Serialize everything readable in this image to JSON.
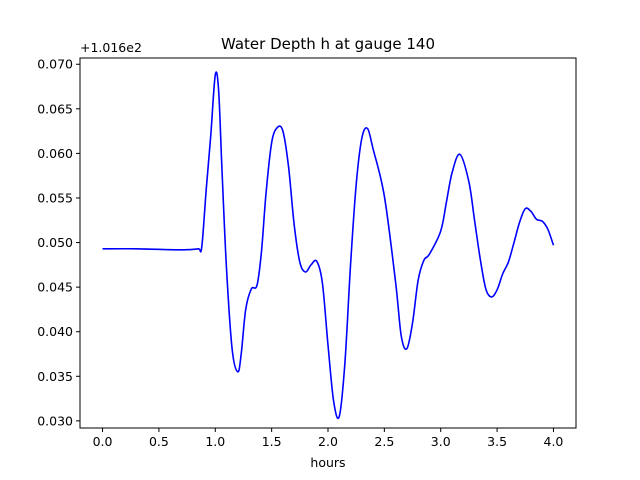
{
  "chart_data": {
    "type": "line",
    "title": "Water Depth h at gauge 140",
    "xlabel": "hours",
    "ylabel": "",
    "offset_text": "+1.016e2",
    "xlim": [
      -0.2,
      4.2
    ],
    "ylim": [
      0.0292,
      0.0707
    ],
    "xticks": [
      0.0,
      0.5,
      1.0,
      1.5,
      2.0,
      2.5,
      3.0,
      3.5,
      4.0
    ],
    "xtick_labels": [
      "0.0",
      "0.5",
      "1.0",
      "1.5",
      "2.0",
      "2.5",
      "3.0",
      "3.5",
      "4.0"
    ],
    "yticks": [
      0.03,
      0.035,
      0.04,
      0.045,
      0.05,
      0.055,
      0.06,
      0.065,
      0.07
    ],
    "ytick_labels": [
      "0.030",
      "0.035",
      "0.040",
      "0.045",
      "0.050",
      "0.055",
      "0.060",
      "0.065",
      "0.070"
    ],
    "grid": false,
    "series": [
      {
        "color": "#0000ff",
        "x": [
          0.0,
          0.3,
          0.6,
          0.75,
          0.85,
          0.88,
          0.92,
          0.96,
          1.0,
          1.03,
          1.06,
          1.1,
          1.15,
          1.2,
          1.23,
          1.27,
          1.32,
          1.37,
          1.41,
          1.45,
          1.5,
          1.55,
          1.6,
          1.65,
          1.7,
          1.75,
          1.8,
          1.85,
          1.9,
          1.95,
          2.0,
          2.05,
          2.1,
          2.15,
          2.2,
          2.25,
          2.3,
          2.35,
          2.4,
          2.5,
          2.6,
          2.65,
          2.7,
          2.75,
          2.8,
          2.85,
          2.9,
          3.0,
          3.05,
          3.1,
          3.17,
          3.25,
          3.3,
          3.35,
          3.4,
          3.45,
          3.5,
          3.55,
          3.6,
          3.65,
          3.7,
          3.75,
          3.8,
          3.85,
          3.9,
          3.95,
          4.0
        ],
        "y": [
          0.0493,
          0.0493,
          0.0492,
          0.0492,
          0.0493,
          0.0495,
          0.056,
          0.062,
          0.0688,
          0.067,
          0.058,
          0.047,
          0.038,
          0.0355,
          0.0375,
          0.0425,
          0.0448,
          0.0452,
          0.049,
          0.0555,
          0.0612,
          0.0629,
          0.0625,
          0.0585,
          0.052,
          0.0478,
          0.0467,
          0.0475,
          0.0479,
          0.0455,
          0.0385,
          0.0322,
          0.0305,
          0.0365,
          0.0475,
          0.0565,
          0.0617,
          0.0628,
          0.0605,
          0.0552,
          0.0455,
          0.0395,
          0.0381,
          0.041,
          0.0458,
          0.048,
          0.0487,
          0.0513,
          0.0545,
          0.0578,
          0.0599,
          0.0568,
          0.0525,
          0.0482,
          0.0448,
          0.0439,
          0.0447,
          0.0465,
          0.0478,
          0.05,
          0.0523,
          0.0538,
          0.0535,
          0.0526,
          0.0524,
          0.0515,
          0.0497
        ]
      }
    ]
  }
}
